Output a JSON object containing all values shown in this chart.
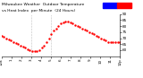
{
  "bg_color": "#ffffff",
  "line_color": "#ff0000",
  "markersize": 1.5,
  "legend_blue": "#0000ff",
  "legend_red": "#ff0000",
  "ylim": [
    55,
    90
  ],
  "yticks": [
    60,
    65,
    70,
    75,
    80,
    85,
    90
  ],
  "ytick_labels": [
    "60",
    "65",
    "70",
    "75",
    "80",
    "85",
    "90"
  ],
  "vline_color": "#888888",
  "vline_style": ":",
  "title_fontsize": 3.2,
  "tick_fontsize": 3.0,
  "x_curve": [
    0.0,
    0.02,
    0.04,
    0.06,
    0.08,
    0.1,
    0.12,
    0.14,
    0.16,
    0.18,
    0.2,
    0.22,
    0.24,
    0.26,
    0.28,
    0.3,
    0.32,
    0.34,
    0.36,
    0.38,
    0.4,
    0.42,
    0.44,
    0.46,
    0.48,
    0.5,
    0.52,
    0.54,
    0.56,
    0.58,
    0.6,
    0.62,
    0.64,
    0.66,
    0.68,
    0.7,
    0.72,
    0.74,
    0.76,
    0.78,
    0.8,
    0.82,
    0.84,
    0.86,
    0.88,
    0.9,
    0.92,
    0.94,
    0.96,
    0.98,
    1.0
  ],
  "y_curve": [
    72,
    71,
    70,
    69,
    68,
    67,
    66,
    65,
    64,
    63,
    62,
    61,
    60,
    59,
    59,
    59,
    60,
    62,
    64,
    67,
    70,
    73,
    76,
    78,
    80,
    82,
    83,
    84,
    84,
    83,
    82,
    81,
    80,
    79,
    78,
    77,
    76,
    75,
    74,
    73,
    72,
    71,
    70,
    69,
    68,
    67,
    67,
    67,
    67,
    67,
    67
  ],
  "vlines": [
    0.25,
    0.42
  ],
  "xtick_positions": [
    0.0,
    0.083,
    0.167,
    0.25,
    0.333,
    0.417,
    0.5,
    0.583,
    0.667,
    0.75,
    0.833,
    0.917,
    1.0
  ],
  "xtick_labels": [
    "12a",
    "1",
    "2",
    "3",
    "4",
    "5",
    "6",
    "7",
    "8",
    "9",
    "10",
    "11",
    "12p"
  ],
  "title_line1": "Milwaukee Weather  Outdoor Temperature",
  "title_line2": "vs Heat Index  per Minute  (24 Hours)"
}
